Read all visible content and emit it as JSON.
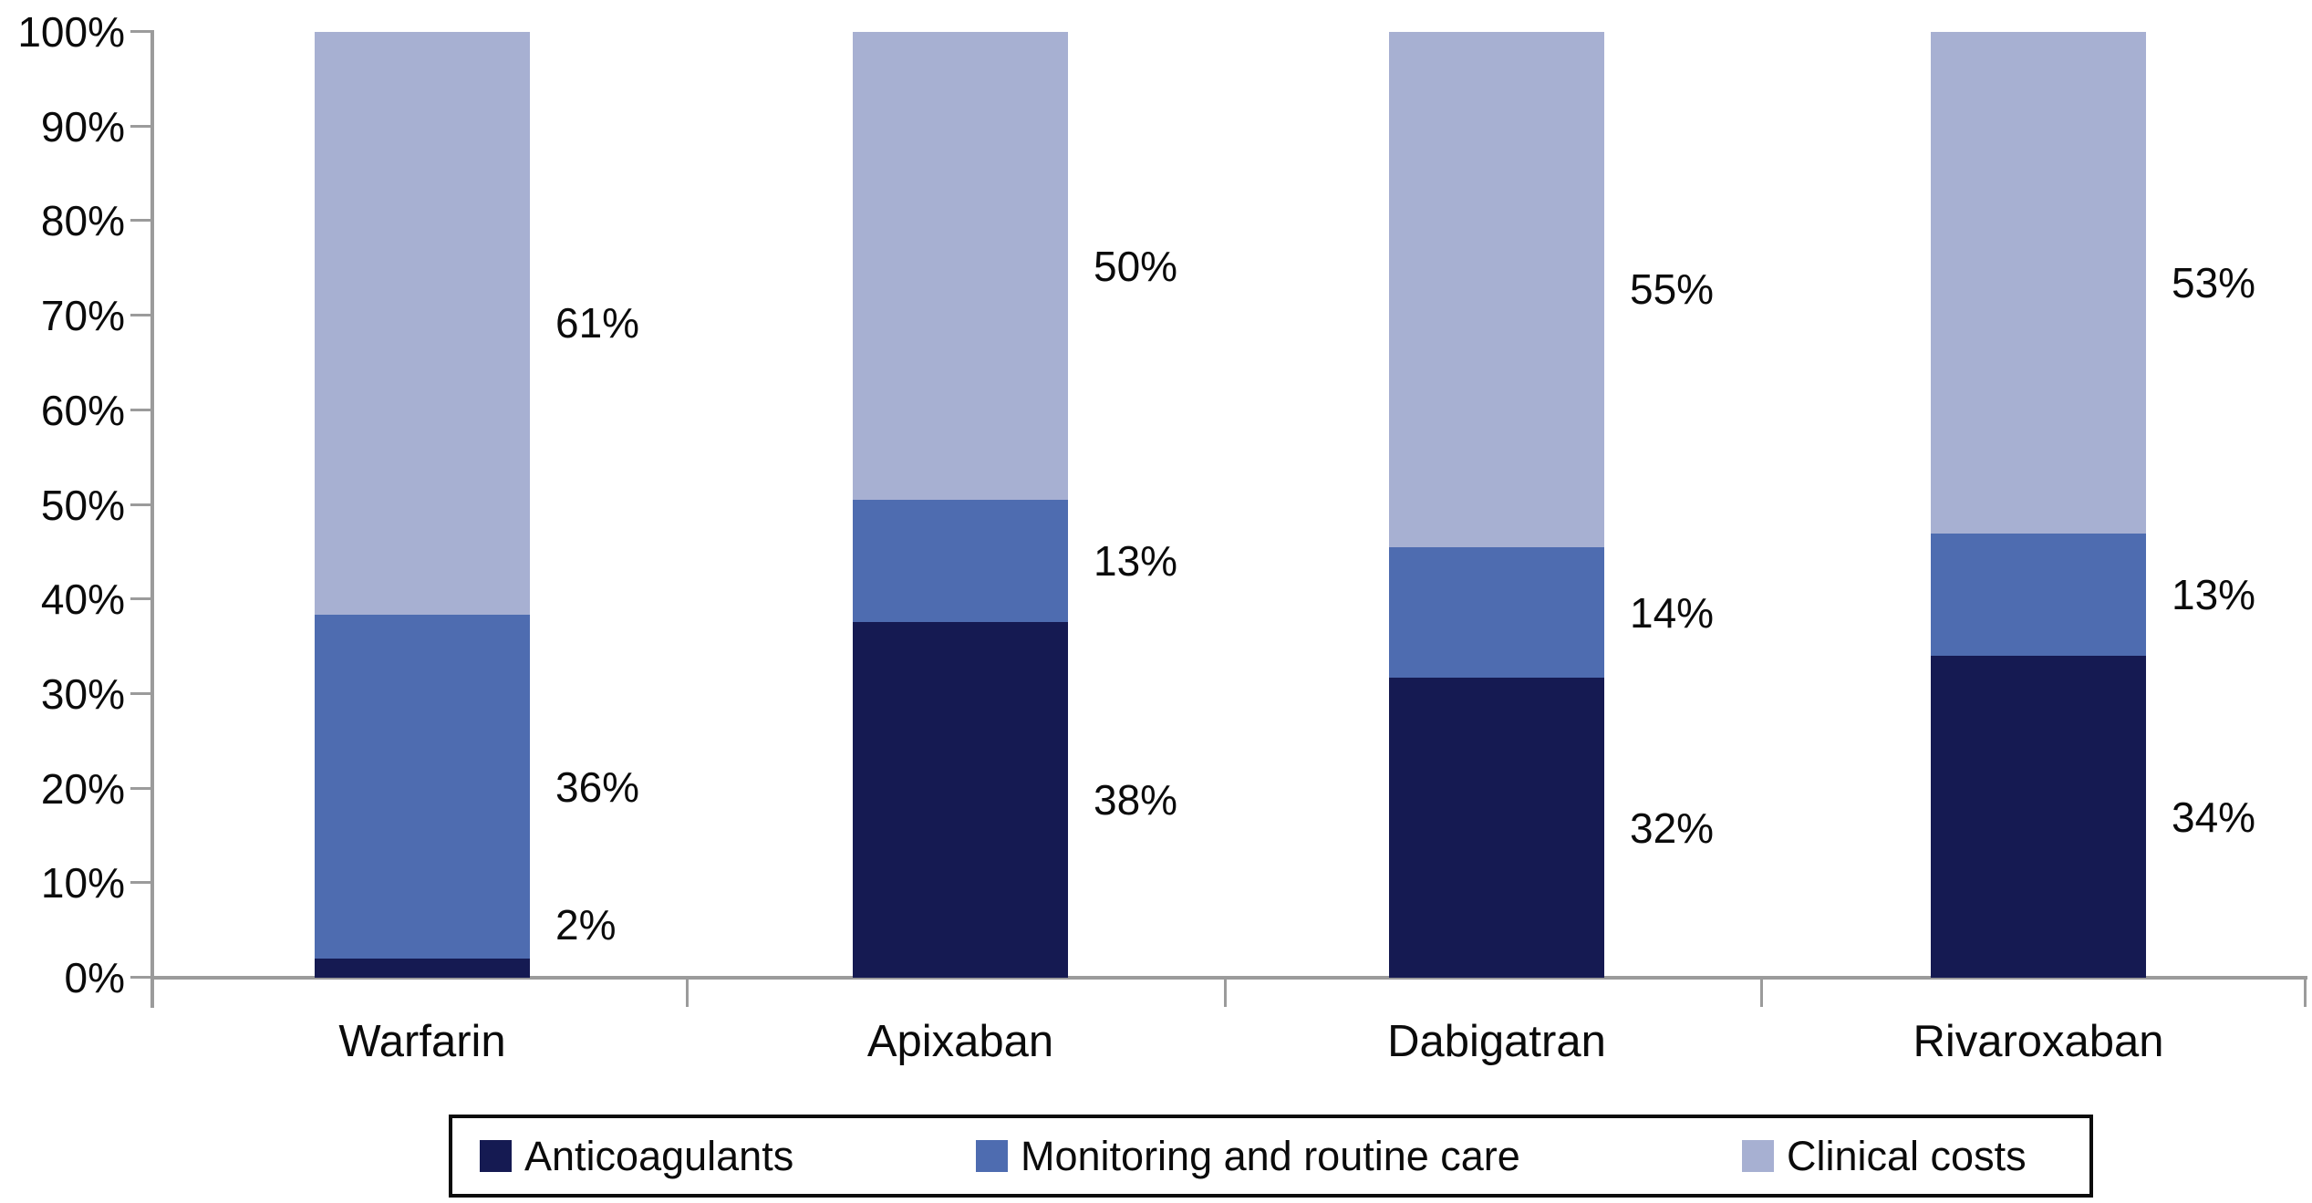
{
  "chart_data": {
    "type": "bar",
    "stacked": true,
    "percent_stacked": true,
    "grid": false,
    "categories": [
      "Warfarin",
      "Apixaban",
      "Dabigatran",
      "Rivaroxaban"
    ],
    "series": [
      {
        "name": "Anticoagulants",
        "color": "#151a52",
        "values": [
          2,
          38,
          32,
          34
        ]
      },
      {
        "name": "Monitoring and routine care",
        "color": "#4e6cb0",
        "values": [
          36,
          13,
          14,
          13
        ]
      },
      {
        "name": "Clinical costs",
        "color": "#a7b0d2",
        "values": [
          61,
          50,
          55,
          53
        ]
      }
    ],
    "value_labels": [
      [
        "2%",
        "36%",
        "61%"
      ],
      [
        "38%",
        "13%",
        "50%"
      ],
      [
        "32%",
        "14%",
        "55%"
      ],
      [
        "34%",
        "13%",
        "53%"
      ]
    ],
    "y_axis": {
      "min": 0,
      "max": 100,
      "tick_labels": [
        "0%",
        "10%",
        "20%",
        "30%",
        "40%",
        "50%",
        "60%",
        "70%",
        "80%",
        "90%",
        "100%"
      ]
    },
    "legend": {
      "position": "bottom",
      "items": [
        "Anticoagulants",
        "Monitoring and routine care",
        "Clinical costs"
      ]
    },
    "colors": {
      "axis": "#9b9b9b",
      "text": "#0b0b0b",
      "legend_border": "#0c0c0c",
      "background": "#ffffff"
    }
  }
}
